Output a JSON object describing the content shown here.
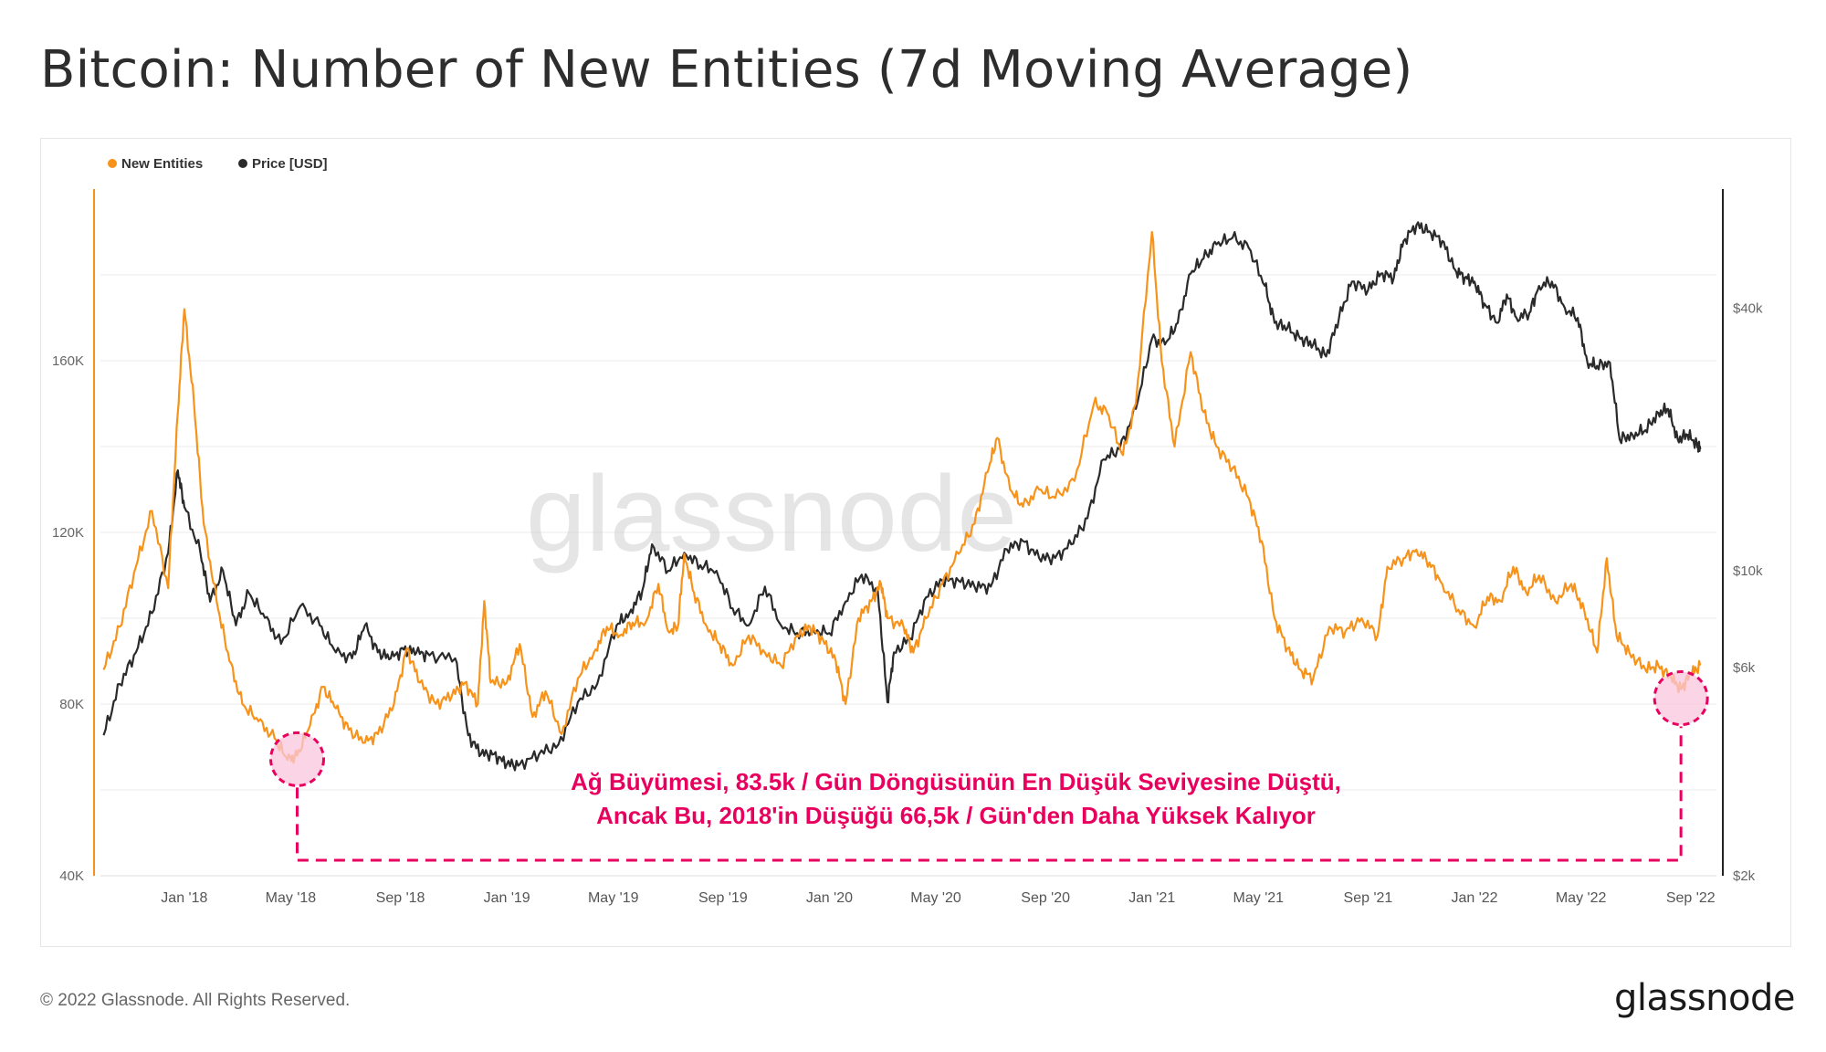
{
  "header": {
    "title": "Bitcoin: Number of New Entities (7d Moving Average)"
  },
  "footer": {
    "copyright": "© 2022 Glassnode. All Rights Reserved.",
    "brand": "glassnode"
  },
  "watermark": "glassnode",
  "annotation": {
    "line1": "Ağ Büyümesi, 83.5k / Gün Döngüsünün En Düşük Seviyesine Düştü,",
    "line2": "Ancak Bu, 2018'in Düşüğü 66,5k / Gün'den Daha Yüksek Kalıyor"
  },
  "colors": {
    "entities": "#f7931a",
    "price": "#2a2a2a",
    "annotation": "#e8005f",
    "highlight_fill": "#f9c5dc",
    "grid": "#ebebeb",
    "tick": "#666666"
  },
  "chart_data": {
    "type": "line",
    "title": "Bitcoin: Number of New Entities (7d Moving Average)",
    "legend": [
      {
        "name": "New Entities",
        "color": "#f7931a"
      },
      {
        "name": "Price [USD]",
        "color": "#2a2a2a"
      }
    ],
    "legend_placement": "top-left",
    "x_ticks": [
      "Jan '18",
      "May '18",
      "Sep '18",
      "Jan '19",
      "May '19",
      "Sep '19",
      "Jan '20",
      "May '20",
      "Sep '20",
      "Jan '21",
      "May '21",
      "Sep '21",
      "Jan '22",
      "May '22",
      "Sep '22"
    ],
    "x_range": [
      2017.74,
      2022.75
    ],
    "y_left": {
      "label": "New Entities",
      "ticks": [
        "40K",
        "80K",
        "120K",
        "160K"
      ],
      "tick_values": [
        40000,
        80000,
        120000,
        160000
      ],
      "range": [
        40000,
        200000
      ]
    },
    "y_right": {
      "label": "Price [USD]",
      "scale": "log",
      "ticks": [
        "$2k",
        "$6k",
        "$10k",
        "$40k"
      ],
      "tick_values": [
        2000,
        6000,
        10000,
        40000
      ],
      "range": [
        2000,
        75000
      ]
    },
    "series": [
      {
        "name": "New Entities",
        "axis": "left",
        "points": [
          [
            2017.75,
            88000
          ],
          [
            2017.8,
            98000
          ],
          [
            2017.85,
            112000
          ],
          [
            2017.9,
            125000
          ],
          [
            2017.95,
            107000
          ],
          [
            2017.98,
            148000
          ],
          [
            2018.0,
            172000
          ],
          [
            2018.03,
            150000
          ],
          [
            2018.06,
            122000
          ],
          [
            2018.1,
            104000
          ],
          [
            2018.14,
            90000
          ],
          [
            2018.18,
            80000
          ],
          [
            2018.23,
            76000
          ],
          [
            2018.28,
            72000
          ],
          [
            2018.32,
            67000
          ],
          [
            2018.35,
            68000
          ],
          [
            2018.39,
            75000
          ],
          [
            2018.43,
            84000
          ],
          [
            2018.47,
            79000
          ],
          [
            2018.51,
            74000
          ],
          [
            2018.56,
            71000
          ],
          [
            2018.6,
            73000
          ],
          [
            2018.65,
            80000
          ],
          [
            2018.69,
            93000
          ],
          [
            2018.73,
            85000
          ],
          [
            2018.78,
            80000
          ],
          [
            2018.83,
            82000
          ],
          [
            2018.87,
            85000
          ],
          [
            2018.91,
            80000
          ],
          [
            2018.93,
            104000
          ],
          [
            2018.95,
            85000
          ],
          [
            2019.0,
            85000
          ],
          [
            2019.04,
            94000
          ],
          [
            2019.08,
            77000
          ],
          [
            2019.12,
            83000
          ],
          [
            2019.17,
            73000
          ],
          [
            2019.22,
            86000
          ],
          [
            2019.27,
            92000
          ],
          [
            2019.31,
            98000
          ],
          [
            2019.35,
            96000
          ],
          [
            2019.39,
            99000
          ],
          [
            2019.43,
            99000
          ],
          [
            2019.47,
            108000
          ],
          [
            2019.5,
            97000
          ],
          [
            2019.53,
            98000
          ],
          [
            2019.55,
            115000
          ],
          [
            2019.58,
            106000
          ],
          [
            2019.62,
            98000
          ],
          [
            2019.66,
            94000
          ],
          [
            2019.7,
            89000
          ],
          [
            2019.75,
            96000
          ],
          [
            2019.8,
            92000
          ],
          [
            2019.85,
            89000
          ],
          [
            2019.9,
            96000
          ],
          [
            2019.94,
            98000
          ],
          [
            2019.98,
            95000
          ],
          [
            2020.02,
            90000
          ],
          [
            2020.05,
            80000
          ],
          [
            2020.09,
            100000
          ],
          [
            2020.13,
            104000
          ],
          [
            2020.16,
            108000
          ],
          [
            2020.18,
            100000
          ],
          [
            2020.23,
            98000
          ],
          [
            2020.26,
            92000
          ],
          [
            2020.3,
            100000
          ],
          [
            2020.35,
            108000
          ],
          [
            2020.4,
            115000
          ],
          [
            2020.45,
            122000
          ],
          [
            2020.49,
            134000
          ],
          [
            2020.52,
            142000
          ],
          [
            2020.56,
            130000
          ],
          [
            2020.6,
            126000
          ],
          [
            2020.65,
            130000
          ],
          [
            2020.7,
            128000
          ],
          [
            2020.76,
            132000
          ],
          [
            2020.82,
            150000
          ],
          [
            2020.86,
            148000
          ],
          [
            2020.91,
            138000
          ],
          [
            2020.95,
            150000
          ],
          [
            2021.0,
            190000
          ],
          [
            2021.03,
            160000
          ],
          [
            2021.07,
            140000
          ],
          [
            2021.12,
            162000
          ],
          [
            2021.16,
            148000
          ],
          [
            2021.2,
            140000
          ],
          [
            2021.25,
            135000
          ],
          [
            2021.3,
            128000
          ],
          [
            2021.34,
            118000
          ],
          [
            2021.38,
            100000
          ],
          [
            2021.42,
            93000
          ],
          [
            2021.46,
            88000
          ],
          [
            2021.5,
            86000
          ],
          [
            2021.55,
            98000
          ],
          [
            2021.6,
            97000
          ],
          [
            2021.65,
            100000
          ],
          [
            2021.7,
            96000
          ],
          [
            2021.73,
            112000
          ],
          [
            2021.78,
            114000
          ],
          [
            2021.82,
            116000
          ],
          [
            2021.86,
            113000
          ],
          [
            2021.9,
            108000
          ],
          [
            2021.95,
            102000
          ],
          [
            2022.0,
            98000
          ],
          [
            2022.04,
            105000
          ],
          [
            2022.08,
            104000
          ],
          [
            2022.12,
            112000
          ],
          [
            2022.16,
            106000
          ],
          [
            2022.2,
            110000
          ],
          [
            2022.25,
            104000
          ],
          [
            2022.3,
            108000
          ],
          [
            2022.34,
            102000
          ],
          [
            2022.38,
            92000
          ],
          [
            2022.41,
            114000
          ],
          [
            2022.44,
            96000
          ],
          [
            2022.48,
            92000
          ],
          [
            2022.53,
            88000
          ],
          [
            2022.57,
            89000
          ],
          [
            2022.61,
            86000
          ],
          [
            2022.64,
            83500
          ],
          [
            2022.67,
            87000
          ],
          [
            2022.7,
            89000
          ]
        ]
      },
      {
        "name": "Price [USD]",
        "axis": "right",
        "points": [
          [
            2017.75,
            4200
          ],
          [
            2017.8,
            5500
          ],
          [
            2017.85,
            6500
          ],
          [
            2017.9,
            8000
          ],
          [
            2017.95,
            11000
          ],
          [
            2017.98,
            17000
          ],
          [
            2018.0,
            14000
          ],
          [
            2018.05,
            11000
          ],
          [
            2018.08,
            8500
          ],
          [
            2018.12,
            10000
          ],
          [
            2018.16,
            7500
          ],
          [
            2018.2,
            8900
          ],
          [
            2018.25,
            7800
          ],
          [
            2018.3,
            6800
          ],
          [
            2018.36,
            8300
          ],
          [
            2018.42,
            7500
          ],
          [
            2018.47,
            6500
          ],
          [
            2018.52,
            6300
          ],
          [
            2018.56,
            7500
          ],
          [
            2018.6,
            6500
          ],
          [
            2018.64,
            6300
          ],
          [
            2018.68,
            6600
          ],
          [
            2018.72,
            6500
          ],
          [
            2018.76,
            6400
          ],
          [
            2018.84,
            6300
          ],
          [
            2018.88,
            4200
          ],
          [
            2018.92,
            3800
          ],
          [
            2018.96,
            3800
          ],
          [
            2019.0,
            3600
          ],
          [
            2019.04,
            3600
          ],
          [
            2019.1,
            3800
          ],
          [
            2019.16,
            4000
          ],
          [
            2019.22,
            5000
          ],
          [
            2019.28,
            5500
          ],
          [
            2019.34,
            7500
          ],
          [
            2019.38,
            8000
          ],
          [
            2019.42,
            9000
          ],
          [
            2019.45,
            11500
          ],
          [
            2019.5,
            10000
          ],
          [
            2019.55,
            11000
          ],
          [
            2019.6,
            10300
          ],
          [
            2019.65,
            10000
          ],
          [
            2019.7,
            8200
          ],
          [
            2019.75,
            7500
          ],
          [
            2019.8,
            9200
          ],
          [
            2019.85,
            7500
          ],
          [
            2019.9,
            7200
          ],
          [
            2019.95,
            7300
          ],
          [
            2020.0,
            7200
          ],
          [
            2020.05,
            8500
          ],
          [
            2020.1,
            9800
          ],
          [
            2020.15,
            9000
          ],
          [
            2020.18,
            5000
          ],
          [
            2020.2,
            6500
          ],
          [
            2020.25,
            7000
          ],
          [
            2020.3,
            8700
          ],
          [
            2020.35,
            9500
          ],
          [
            2020.4,
            9500
          ],
          [
            2020.45,
            9200
          ],
          [
            2020.5,
            9200
          ],
          [
            2020.55,
            11200
          ],
          [
            2020.6,
            11700
          ],
          [
            2020.65,
            10700
          ],
          [
            2020.7,
            10700
          ],
          [
            2020.75,
            11500
          ],
          [
            2020.8,
            13200
          ],
          [
            2020.85,
            18000
          ],
          [
            2020.9,
            19000
          ],
          [
            2020.95,
            23500
          ],
          [
            2021.0,
            34000
          ],
          [
            2021.04,
            33000
          ],
          [
            2021.08,
            37000
          ],
          [
            2021.12,
            48000
          ],
          [
            2021.16,
            52000
          ],
          [
            2021.2,
            56000
          ],
          [
            2021.25,
            58000
          ],
          [
            2021.3,
            55000
          ],
          [
            2021.35,
            45000
          ],
          [
            2021.38,
            37000
          ],
          [
            2021.42,
            36000
          ],
          [
            2021.46,
            34000
          ],
          [
            2021.5,
            33000
          ],
          [
            2021.54,
            31000
          ],
          [
            2021.58,
            38000
          ],
          [
            2021.62,
            46000
          ],
          [
            2021.67,
            44000
          ],
          [
            2021.71,
            48000
          ],
          [
            2021.75,
            47000
          ],
          [
            2021.78,
            57000
          ],
          [
            2021.82,
            62000
          ],
          [
            2021.86,
            60000
          ],
          [
            2021.9,
            57000
          ],
          [
            2021.94,
            49000
          ],
          [
            2021.97,
            47000
          ],
          [
            2022.0,
            46000
          ],
          [
            2022.03,
            41000
          ],
          [
            2022.07,
            37000
          ],
          [
            2022.1,
            43000
          ],
          [
            2022.13,
            38000
          ],
          [
            2022.17,
            39000
          ],
          [
            2022.2,
            45000
          ],
          [
            2022.24,
            46000
          ],
          [
            2022.28,
            40000
          ],
          [
            2022.32,
            38000
          ],
          [
            2022.35,
            30000
          ],
          [
            2022.38,
            29500
          ],
          [
            2022.42,
            30000
          ],
          [
            2022.45,
            20000
          ],
          [
            2022.49,
            20500
          ],
          [
            2022.53,
            21000
          ],
          [
            2022.57,
            23000
          ],
          [
            2022.6,
            23500
          ],
          [
            2022.63,
            20000
          ],
          [
            2022.66,
            20500
          ],
          [
            2022.69,
            19500
          ],
          [
            2022.7,
            19000
          ]
        ]
      }
    ],
    "highlights": [
      {
        "x": 2018.35,
        "y": 68000
      },
      {
        "x": 2022.64,
        "y": 83500
      }
    ]
  }
}
